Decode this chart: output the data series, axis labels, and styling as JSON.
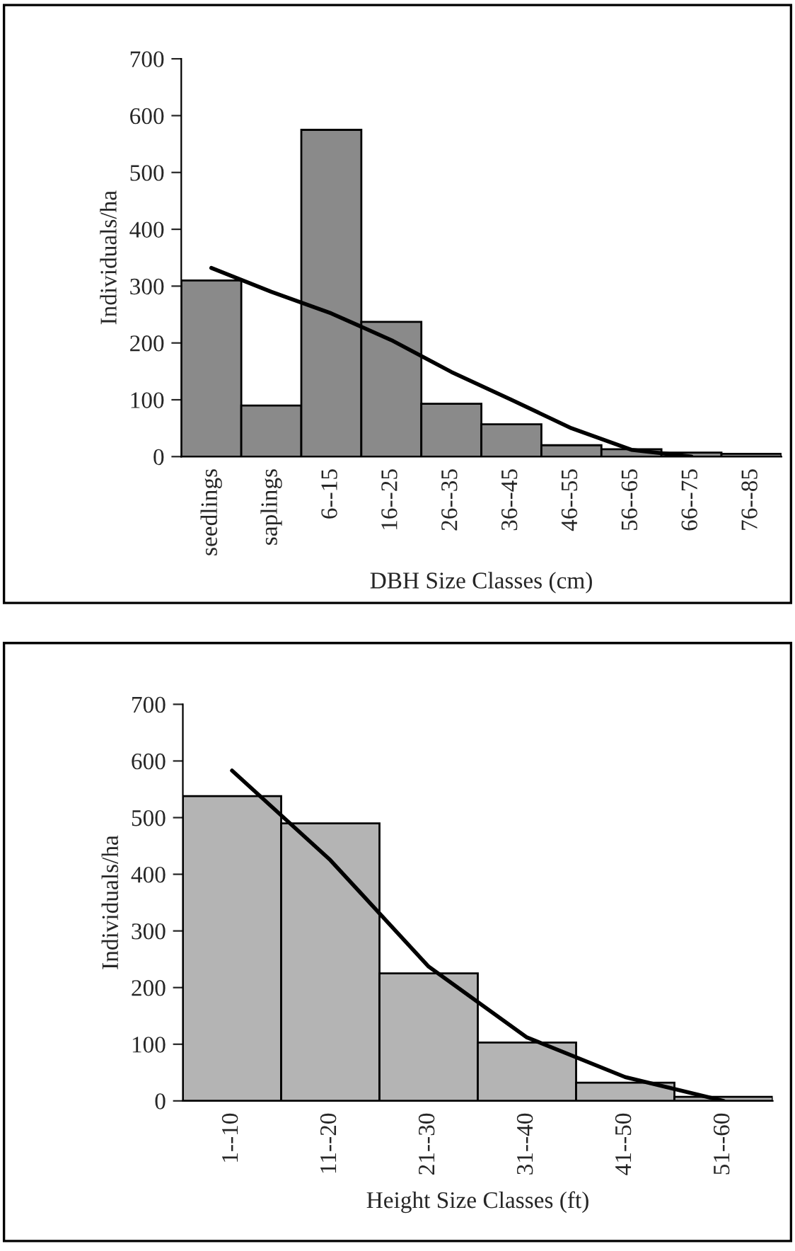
{
  "chart_data": [
    {
      "type": "bar",
      "xlabel": "DBH Size Classes (cm)",
      "ylabel": "Individuals/ha",
      "categories": [
        "seedlings",
        "saplings",
        "6--15",
        "16--25",
        "26--35",
        "36--45",
        "46--55",
        "56--65",
        "66--75",
        "76--85"
      ],
      "ylim": [
        0,
        700
      ],
      "yticks": [
        0,
        100,
        200,
        300,
        400,
        500,
        600,
        700
      ],
      "grid": false,
      "series": [
        {
          "color": "#8a8a8a",
          "values": [
            310,
            90,
            575,
            237,
            93,
            57,
            20,
            13,
            7,
            5
          ]
        },
        {
          "type": "line",
          "color": "#000000",
          "values": [
            332,
            290,
            252,
            205,
            149,
            100,
            50,
            12,
            0,
            null
          ]
        }
      ]
    },
    {
      "type": "bar",
      "xlabel": "Height Size Classes (ft)",
      "ylabel": "Individuals/ha",
      "categories": [
        "1--10",
        "11--20",
        "21--30",
        "31--40",
        "41--50",
        "51--60"
      ],
      "ylim": [
        0,
        700
      ],
      "yticks": [
        0,
        100,
        200,
        300,
        400,
        500,
        600,
        700
      ],
      "grid": false,
      "series": [
        {
          "color": "#b4b4b4",
          "values": [
            538,
            490,
            225,
            103,
            32,
            7
          ]
        },
        {
          "type": "line",
          "color": "#000000",
          "values": [
            583,
            425,
            237,
            112,
            42,
            0
          ]
        }
      ]
    }
  ]
}
